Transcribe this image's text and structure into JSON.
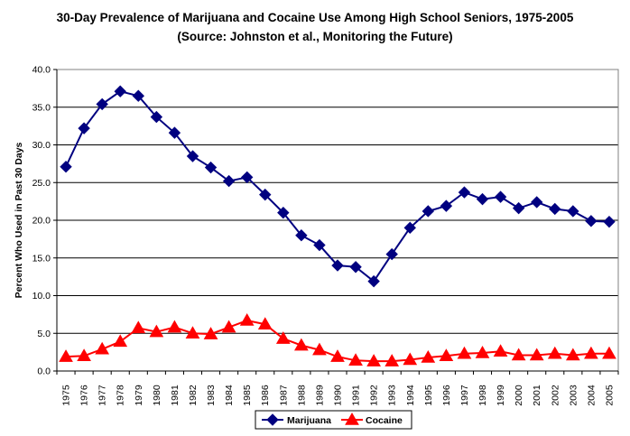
{
  "chart_data": {
    "type": "line",
    "title": "30-Day Prevalence of Marijuana and Cocaine Use Among High School Seniors, 1975-2005",
    "subtitle": "(Source:  Johnston et al., Monitoring the Future)",
    "xlabel": "",
    "ylabel": "Percent Who Used in Past 30 Days",
    "ylim": [
      0,
      40
    ],
    "yticks": [
      "0.0",
      "5.0",
      "10.0",
      "15.0",
      "20.0",
      "25.0",
      "30.0",
      "35.0",
      "40.0"
    ],
    "grid": true,
    "legend_position": "bottom-center",
    "categories": [
      "1975",
      "1976",
      "1977",
      "1978",
      "1979",
      "1980",
      "1981",
      "1982",
      "1983",
      "1984",
      "1985",
      "1986",
      "1987",
      "1988",
      "1989",
      "1990",
      "1991",
      "1992",
      "1993",
      "1994",
      "1995",
      "1996",
      "1997",
      "1998",
      "1999",
      "2000",
      "2001",
      "2002",
      "2003",
      "2004",
      "2005"
    ],
    "series": [
      {
        "name": "Marijuana",
        "color": "#000080",
        "marker": "diamond",
        "values": [
          27.1,
          32.2,
          35.4,
          37.1,
          36.5,
          33.7,
          31.6,
          28.5,
          27.0,
          25.2,
          25.7,
          23.4,
          21.0,
          18.0,
          16.7,
          14.0,
          13.8,
          11.9,
          15.5,
          19.0,
          21.2,
          21.9,
          23.7,
          22.8,
          23.1,
          21.6,
          22.4,
          21.5,
          21.2,
          19.9,
          19.8
        ]
      },
      {
        "name": "Cocaine",
        "color": "#ff0000",
        "marker": "triangle",
        "values": [
          1.9,
          2.0,
          2.9,
          3.9,
          5.7,
          5.2,
          5.8,
          5.0,
          4.9,
          5.8,
          6.7,
          6.2,
          4.3,
          3.4,
          2.8,
          1.9,
          1.4,
          1.3,
          1.3,
          1.5,
          1.8,
          2.0,
          2.3,
          2.4,
          2.6,
          2.1,
          2.1,
          2.3,
          2.1,
          2.3,
          2.3
        ]
      }
    ]
  }
}
